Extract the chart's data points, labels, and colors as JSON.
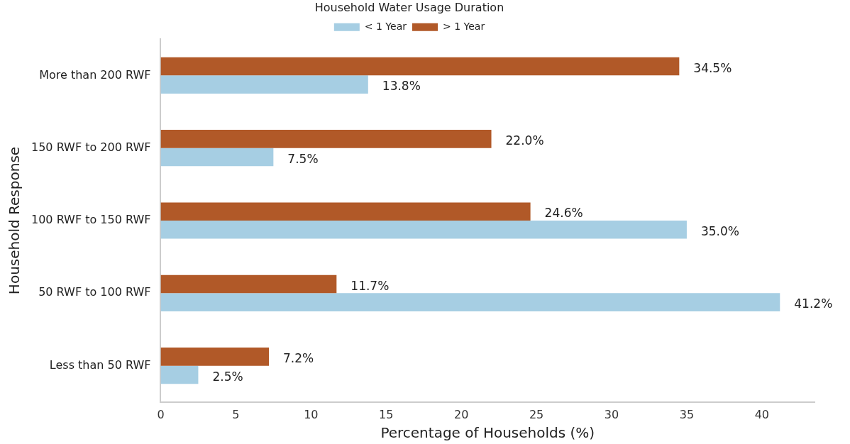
{
  "chart_data": {
    "type": "bar",
    "orientation": "horizontal",
    "legend_title": "Household Water Usage Duration",
    "legend": "top",
    "xlabel": "Percentage of Households (%)",
    "ylabel": "Household Response",
    "categories": [
      "More than 200 RWF",
      "150 RWF to 200 RWF",
      "100 RWF to 150 RWF",
      "50 RWF to 100 RWF",
      "Less than 50 RWF"
    ],
    "series": [
      {
        "name": "< 1 Year",
        "color": "#a6cee3",
        "values": [
          13.8,
          7.5,
          35.0,
          41.2,
          2.5
        ],
        "value_labels": [
          "13.8%",
          "7.5%",
          "35.0%",
          "41.2%",
          "2.5%"
        ]
      },
      {
        "name": "> 1 Year",
        "color": "#b15928",
        "values": [
          34.5,
          22.0,
          24.6,
          11.7,
          7.2
        ],
        "value_labels": [
          "34.5%",
          "22.0%",
          "24.6%",
          "11.7%",
          "7.2%"
        ]
      }
    ],
    "xlim": [
      0,
      43.5
    ],
    "xticks": [
      0,
      5,
      10,
      15,
      20,
      25,
      30,
      35,
      40
    ],
    "grid": false
  }
}
